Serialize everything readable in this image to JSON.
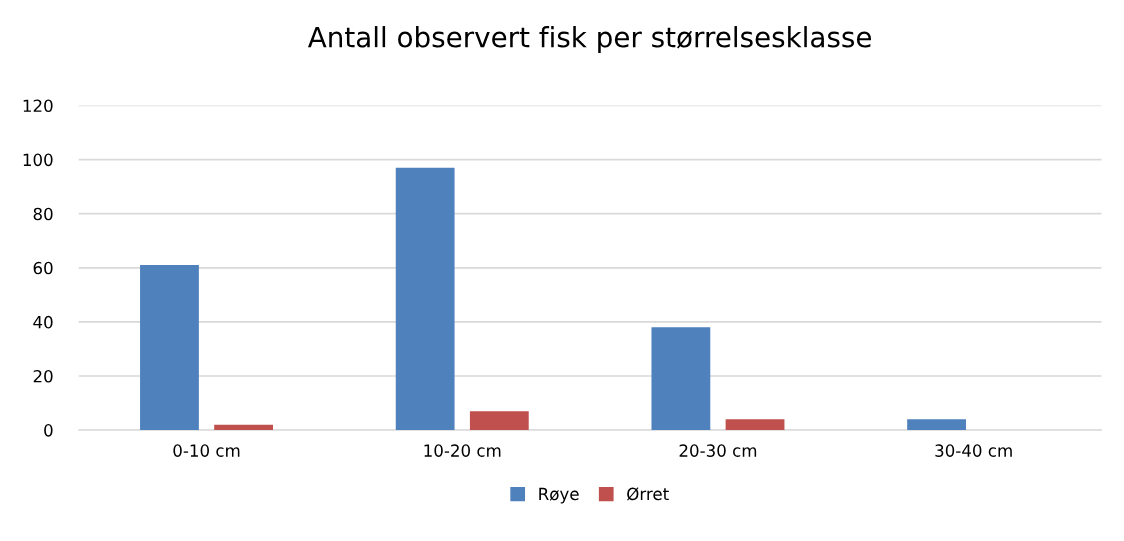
{
  "chart_data": {
    "type": "bar",
    "title": "Antall observert fisk per størrelsesklasse",
    "categories": [
      "0-10 cm",
      "10-20 cm",
      "20-30 cm",
      "30-40 cm"
    ],
    "series": [
      {
        "name": "Røye",
        "color": "#4f81bd",
        "values": [
          61,
          97,
          38,
          4
        ]
      },
      {
        "name": "Ørret",
        "color": "#c0504d",
        "values": [
          2,
          7,
          4,
          0
        ]
      }
    ],
    "ylim": [
      0,
      120
    ],
    "yticks": [
      0,
      20,
      40,
      60,
      80,
      100,
      120
    ],
    "grid": "y",
    "legend": "bottom"
  }
}
